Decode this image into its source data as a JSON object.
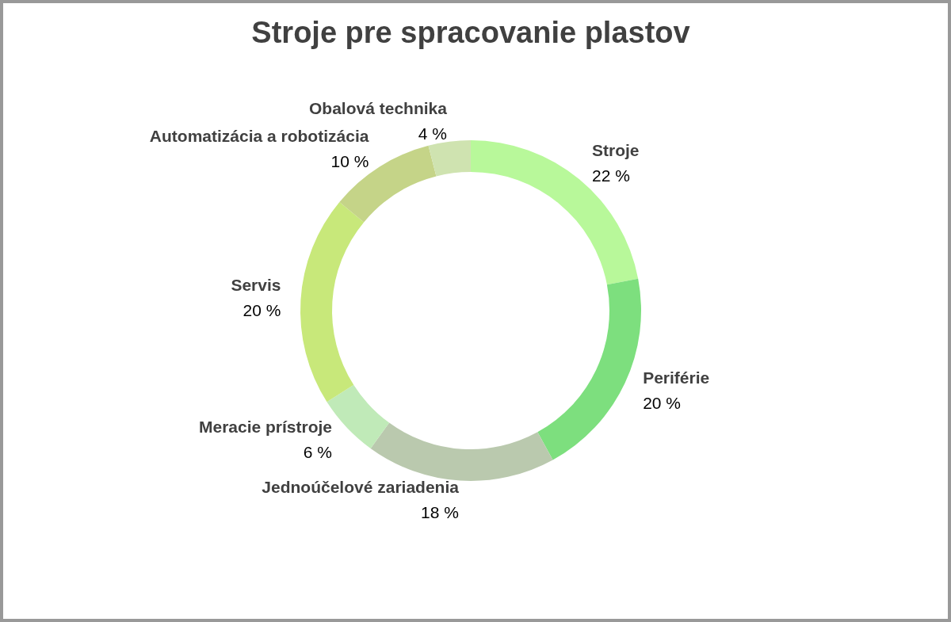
{
  "chart_data": {
    "type": "donut",
    "title": "Stroje pre spracovanie plastov",
    "categories": [
      "Stroje",
      "Periférie",
      "Jednoúčelové zariadenia",
      "Meracie prístroje",
      "Servis",
      "Automatizácia a robotizácia",
      "Obalová technika"
    ],
    "values": [
      22,
      20,
      18,
      6,
      20,
      10,
      4
    ],
    "value_labels": [
      "22 %",
      "20 %",
      "18 %",
      "6 %",
      "20 %",
      "10 %",
      "4 %"
    ],
    "colors": [
      "#b8f89a",
      "#7ddf7e",
      "#bac9ae",
      "#c0eab8",
      "#c8e87a",
      "#c5d488",
      "#cfe3b0"
    ],
    "legend": false
  }
}
